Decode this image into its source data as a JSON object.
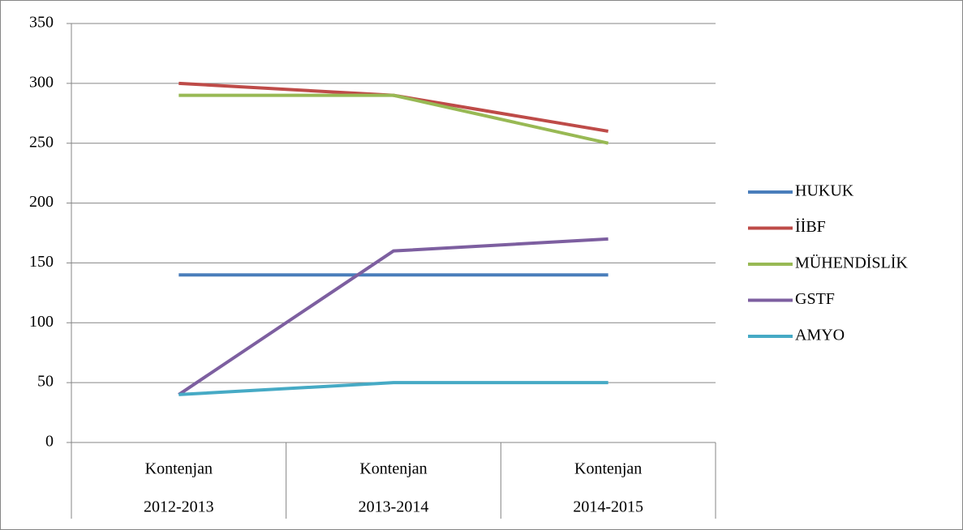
{
  "chart_data": {
    "type": "line",
    "category_groups": [
      "Kontenjan",
      "Kontenjan",
      "Kontenjan"
    ],
    "categories": [
      "2012-2013",
      "2013-2014",
      "2014-2015"
    ],
    "series": [
      {
        "name": "HUKUK",
        "color": "#4a7ebb",
        "values": [
          140,
          140,
          140
        ]
      },
      {
        "name": "İİBF",
        "color": "#be4b48",
        "values": [
          300,
          290,
          260
        ]
      },
      {
        "name": "MÜHENDİSLİK",
        "color": "#98b954",
        "values": [
          290,
          290,
          250
        ]
      },
      {
        "name": "GSTF",
        "color": "#7d5fa0",
        "values": [
          40,
          160,
          170
        ]
      },
      {
        "name": "AMYO",
        "color": "#46aac5",
        "values": [
          40,
          50,
          50
        ]
      }
    ],
    "ylim": [
      0,
      350
    ],
    "yticks": [
      0,
      50,
      100,
      150,
      200,
      250,
      300,
      350
    ],
    "grid": true,
    "legend": "right"
  }
}
